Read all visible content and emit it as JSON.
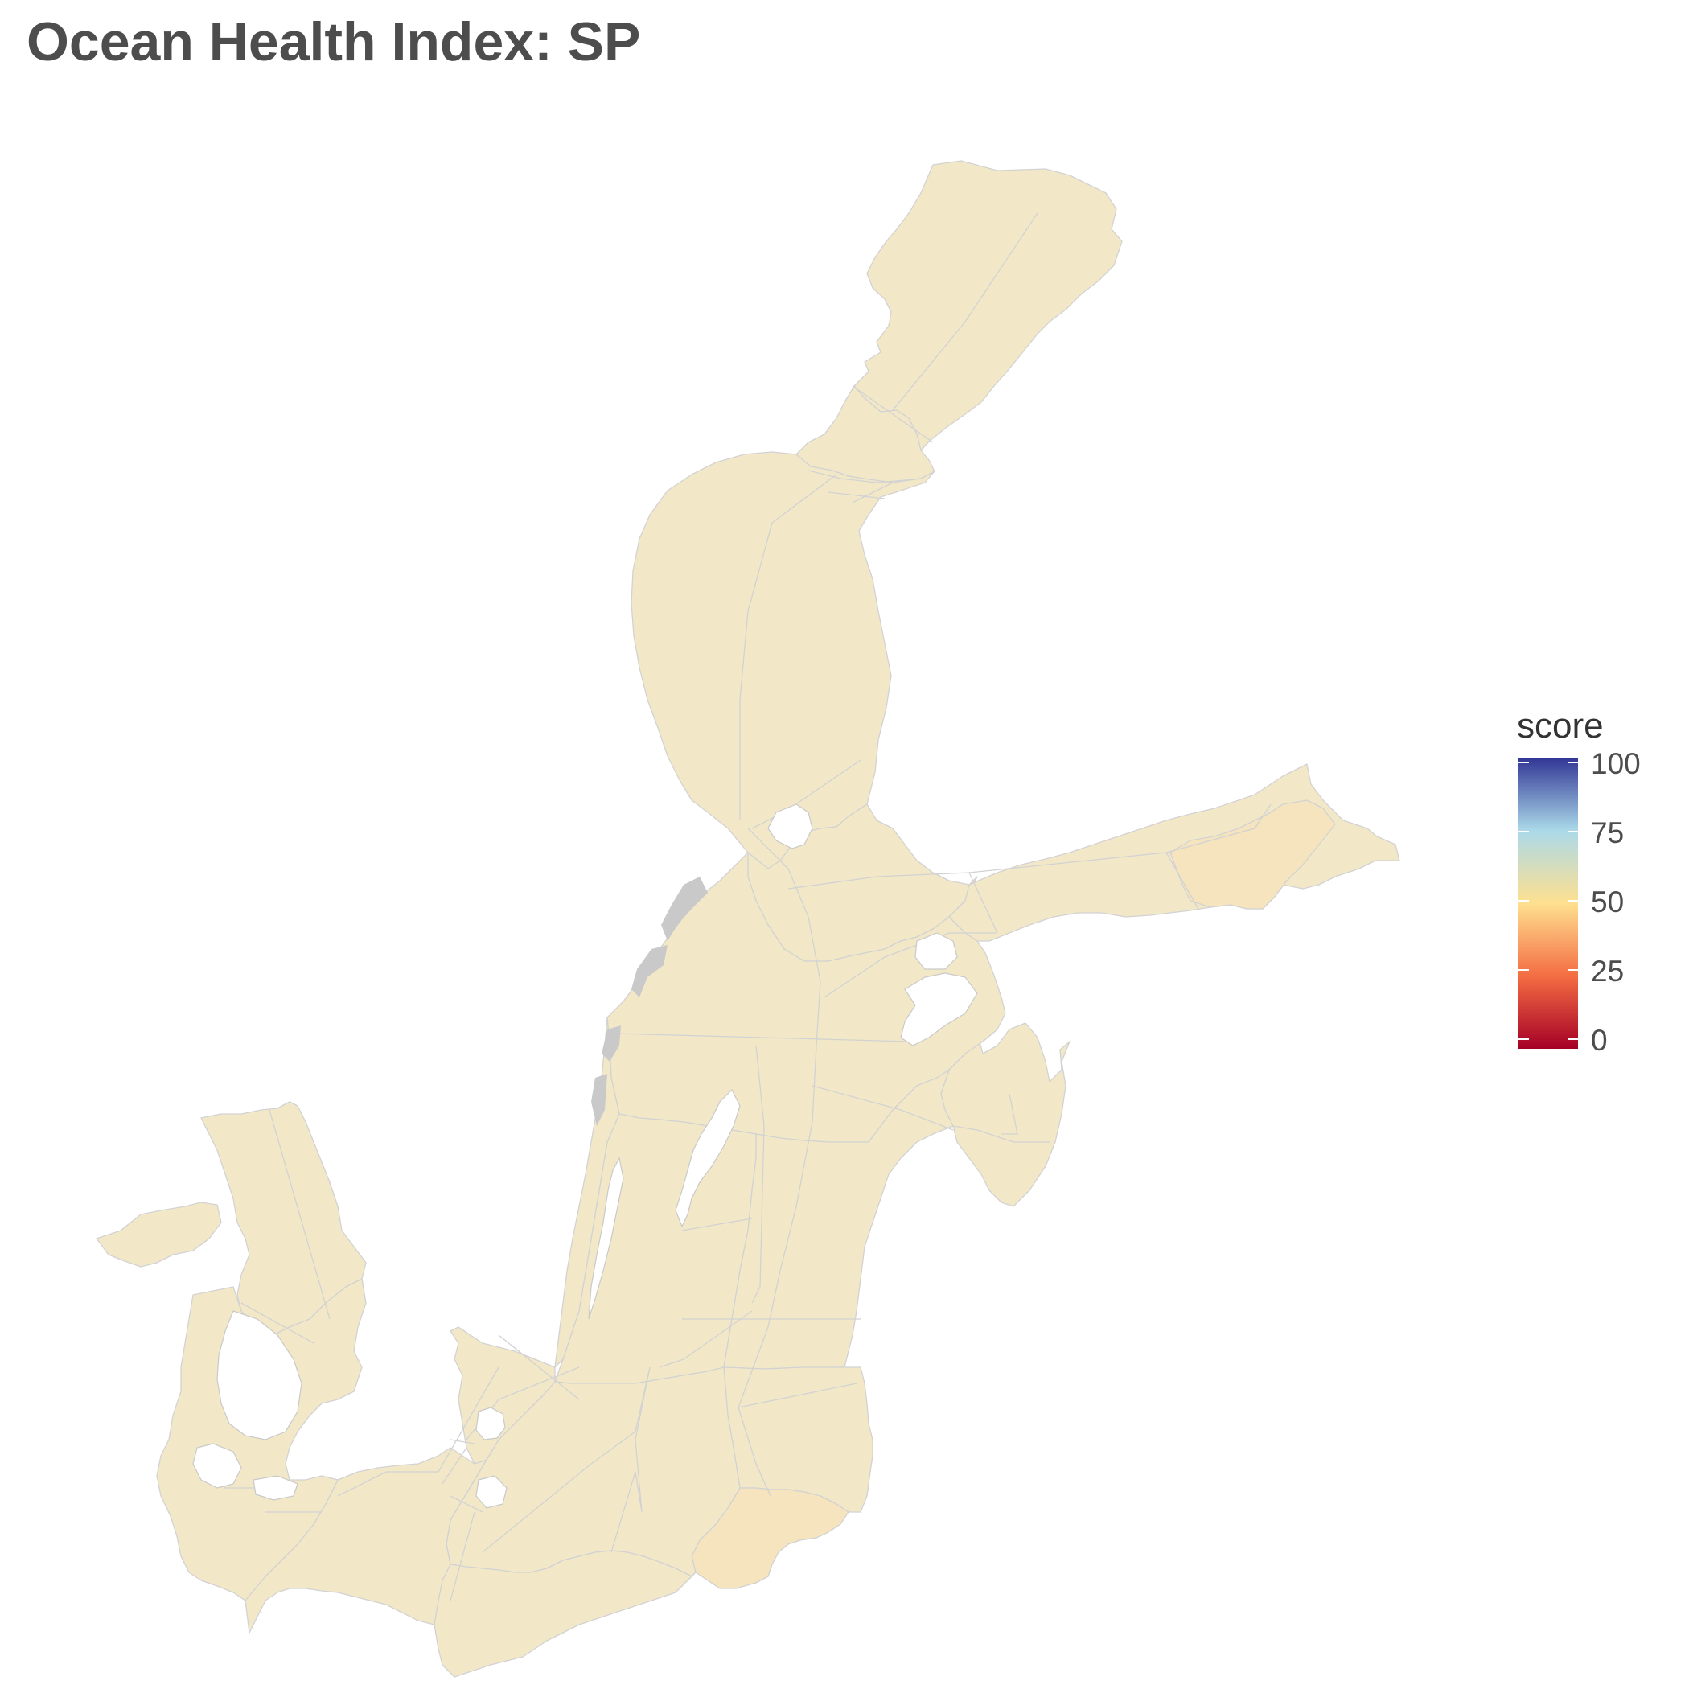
{
  "title": "Ocean Health Index: SP",
  "legend": {
    "title": "score",
    "ticks": [
      "100",
      "75",
      "50",
      "25",
      "0"
    ],
    "colors": {
      "0": "#a50026",
      "25": "#f46d43",
      "50": "#fee090",
      "75": "#abd9e9",
      "100": "#313695"
    }
  },
  "map": {
    "region_fill": "#f2e8c8",
    "region_fill_southeast": "#f5e4be",
    "border_color": "#d2d2d2",
    "background": "#ffffff"
  }
}
